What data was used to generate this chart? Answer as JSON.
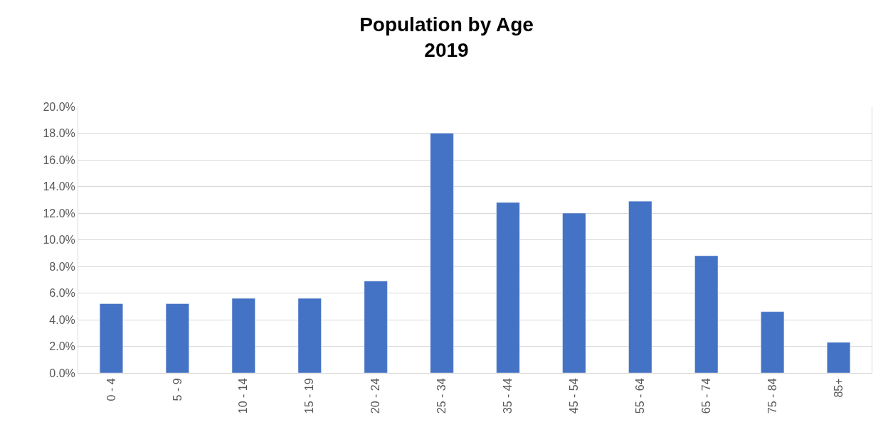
{
  "chart_data": {
    "type": "bar",
    "title": "Population by Age\n2019",
    "categories": [
      "0 - 4",
      "5 - 9",
      "10 - 14",
      "15 - 19",
      "20 - 24",
      "25 - 34",
      "35 - 44",
      "45 - 54",
      "55 - 64",
      "65 - 74",
      "75 - 84",
      "85+"
    ],
    "values": [
      5.2,
      5.2,
      5.6,
      5.6,
      6.9,
      18.0,
      12.8,
      12.0,
      12.9,
      8.8,
      4.6,
      2.3
    ],
    "color": "#4472c4",
    "ylim": [
      0,
      20
    ],
    "yticks": [
      {
        "value": 0,
        "label": "0.0%"
      },
      {
        "value": 2,
        "label": "2.0%"
      },
      {
        "value": 4,
        "label": "4.0%"
      },
      {
        "value": 6,
        "label": "6.0%"
      },
      {
        "value": 8,
        "label": "8.0%"
      },
      {
        "value": 10,
        "label": "10.0%"
      },
      {
        "value": 12,
        "label": "12.0%"
      },
      {
        "value": 14,
        "label": "14.0%"
      },
      {
        "value": 16,
        "label": "16.0%"
      },
      {
        "value": 18,
        "label": "18.0%"
      },
      {
        "value": 20,
        "label": "20.0%"
      }
    ],
    "grid": "y"
  }
}
